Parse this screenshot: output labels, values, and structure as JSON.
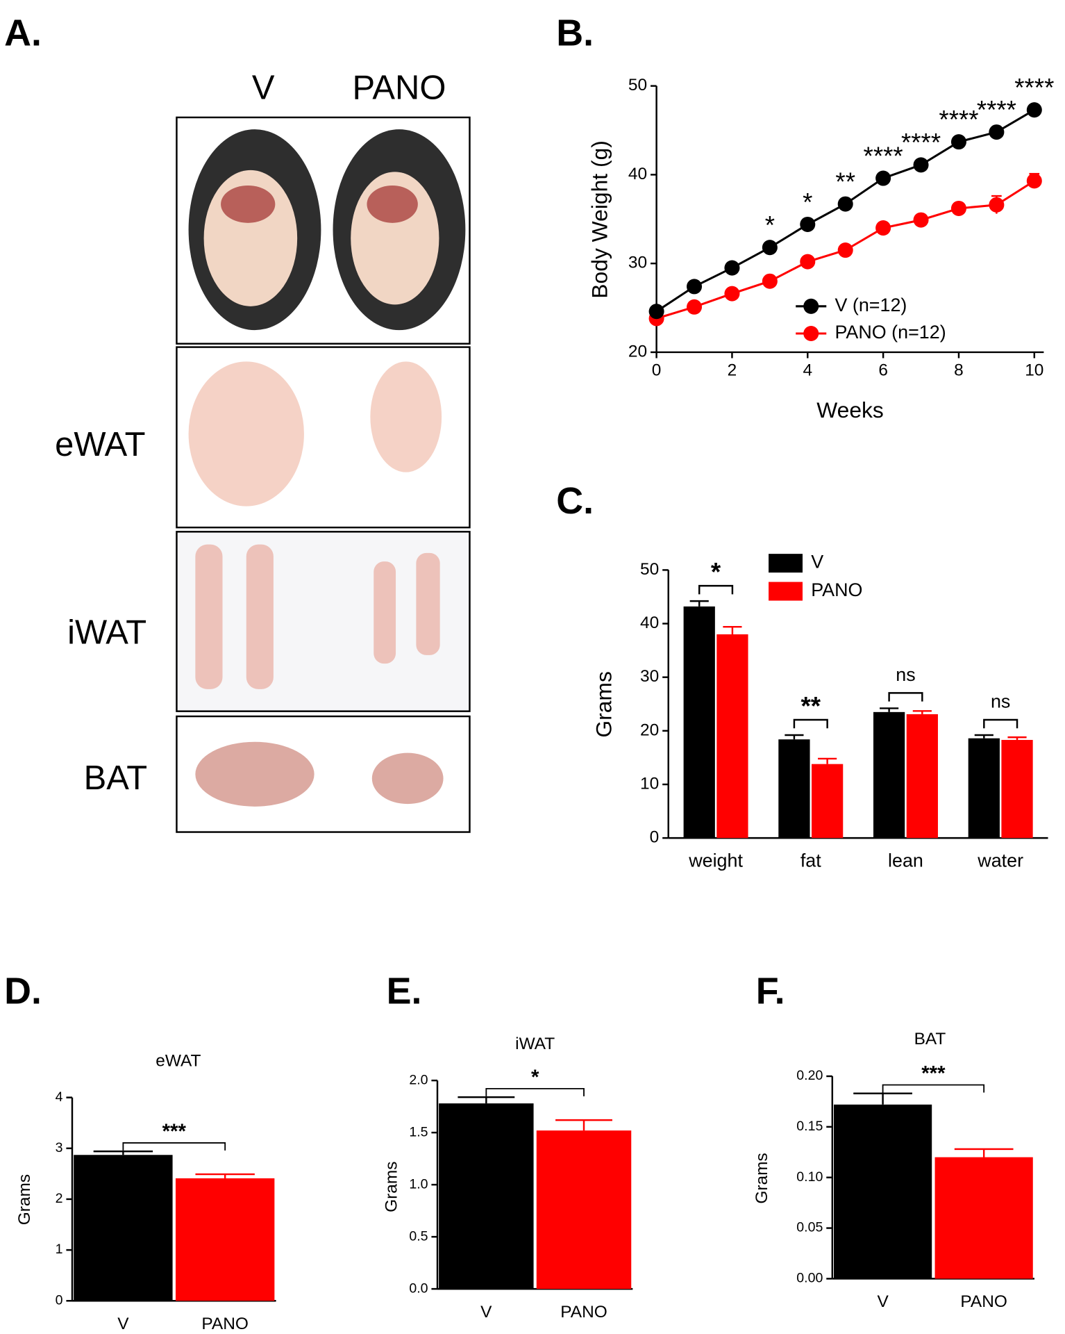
{
  "panel_a": {
    "label": "A.",
    "columns": [
      "V",
      "PANO"
    ],
    "rows": [
      "eWAT",
      "iWAT",
      "BAT"
    ]
  },
  "chart_data": [
    {
      "type": "line",
      "panel_label": "B.",
      "xlabel": "Weeks",
      "ylabel": "Body Weight (g)",
      "x": [
        0,
        1,
        2,
        3,
        4,
        5,
        6,
        7,
        8,
        9,
        10
      ],
      "xlim": [
        0,
        10.25
      ],
      "xticks": [
        0,
        2,
        4,
        6,
        8,
        10
      ],
      "ylim": [
        20,
        50
      ],
      "yticks": [
        20,
        30,
        40,
        50
      ],
      "legend": "lower right",
      "series": [
        {
          "name": "V (n=12)",
          "color": "#000000",
          "values": [
            24.6,
            27.4,
            29.5,
            31.8,
            34.4,
            36.7,
            39.6,
            41.1,
            43.7,
            44.8,
            47.3
          ],
          "errors": [
            0.3,
            0.3,
            0.3,
            0.3,
            0.4,
            0.4,
            0.4,
            0.4,
            0.4,
            0.4,
            0.4
          ]
        },
        {
          "name": "PANO (n=12)",
          "color": "#ff0000",
          "values": [
            23.8,
            25.1,
            26.6,
            28.0,
            30.2,
            31.5,
            34.0,
            34.9,
            36.2,
            36.6,
            39.3
          ],
          "errors": [
            0.3,
            0.3,
            0.3,
            0.3,
            0.4,
            0.4,
            0.4,
            0.4,
            0.5,
            1.0,
            0.8
          ]
        }
      ],
      "annotations": [
        null,
        null,
        null,
        "*",
        "*",
        "**",
        "****",
        "****",
        "****",
        "****",
        "****"
      ]
    },
    {
      "type": "bar",
      "panel_label": "C.",
      "ylabel": "Grams",
      "categories": [
        "weight",
        "fat",
        "lean",
        "water"
      ],
      "ylim": [
        0,
        50
      ],
      "yticks": [
        0,
        10,
        20,
        30,
        40,
        50
      ],
      "legend": "upper center",
      "series": [
        {
          "name": "V",
          "color": "#000000",
          "values": [
            43.2,
            18.4,
            23.5,
            18.6
          ],
          "errors": [
            1.0,
            0.8,
            0.7,
            0.6
          ]
        },
        {
          "name": "PANO",
          "color": "#ff0000",
          "values": [
            38.0,
            13.8,
            23.1,
            18.3
          ],
          "errors": [
            1.4,
            1.0,
            0.6,
            0.5
          ]
        }
      ],
      "annotations": [
        "*",
        "**",
        "ns",
        "ns"
      ]
    },
    {
      "type": "bar",
      "panel_label": "D.",
      "title": "eWAT",
      "ylabel": "Grams",
      "categories": [
        "V",
        "PANO"
      ],
      "ylim": [
        0,
        4
      ],
      "yticks": [
        0,
        1,
        2,
        3,
        4
      ],
      "series": [
        {
          "colors": [
            "#000000",
            "#ff0000"
          ],
          "values": [
            2.87,
            2.41
          ],
          "errors": [
            0.07,
            0.08
          ]
        }
      ],
      "annotations": [
        "***"
      ]
    },
    {
      "type": "bar",
      "panel_label": "E.",
      "title": "iWAT",
      "ylabel": "Grams",
      "categories": [
        "V",
        "PANO"
      ],
      "ylim": [
        0,
        2
      ],
      "yticks": [
        {
          "value": 0,
          "label": "0.0"
        },
        0.5,
        {
          "value": 1,
          "label": "1.0"
        },
        1.5,
        {
          "value": 2,
          "label": "2.0"
        }
      ],
      "series": [
        {
          "colors": [
            "#000000",
            "#ff0000"
          ],
          "values": [
            1.78,
            1.52
          ],
          "errors": [
            0.06,
            0.1
          ]
        }
      ],
      "annotations": [
        "*"
      ]
    },
    {
      "type": "bar",
      "panel_label": "F.",
      "title": "BAT",
      "ylabel": "Grams",
      "categories": [
        "V",
        "PANO"
      ],
      "ylim": [
        0,
        0.2
      ],
      "yticks": [
        {
          "value": 0,
          "label": "0.00"
        },
        0.05,
        {
          "value": 0.1,
          "label": "0.10"
        },
        0.15,
        {
          "value": 0.2,
          "label": "0.20"
        }
      ],
      "series": [
        {
          "colors": [
            "#000000",
            "#ff0000"
          ],
          "values": [
            0.172,
            0.12
          ],
          "errors": [
            0.011,
            0.008
          ]
        }
      ],
      "annotations": [
        "***"
      ]
    }
  ]
}
